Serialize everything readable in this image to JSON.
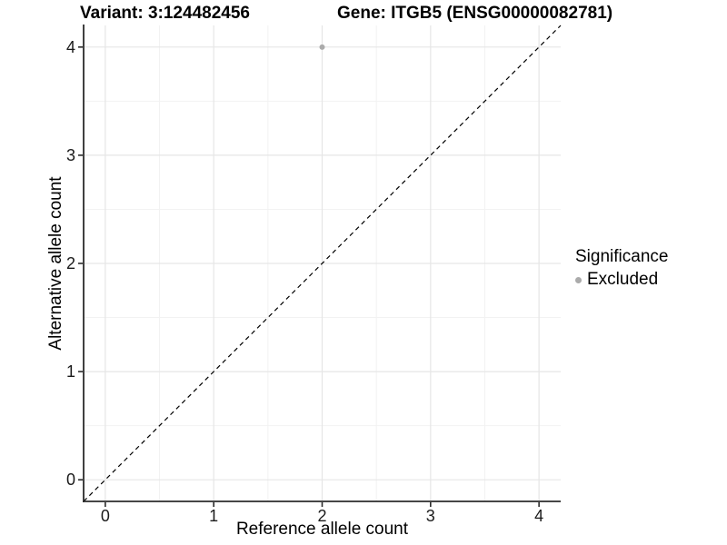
{
  "header": {
    "variant_title": "Variant: 3:124482456",
    "gene_title": "Gene: ITGB5 (ENSG00000082781)"
  },
  "chart_data": {
    "type": "scatter",
    "title": "Variant: 3:124482456 — Gene: ITGB5 (ENSG00000082781)",
    "xlabel": "Reference allele count",
    "ylabel": "Alternative allele count",
    "xlim": [
      -0.2,
      4.2
    ],
    "ylim": [
      -0.2,
      4.2
    ],
    "x_ticks": [
      0,
      1,
      2,
      3,
      4
    ],
    "y_ticks": [
      0,
      1,
      2,
      3,
      4
    ],
    "x_minor_ticks": [
      0.5,
      1.5,
      2.5,
      3.5
    ],
    "y_minor_ticks": [
      0.5,
      1.5,
      2.5,
      3.5
    ],
    "grid": "major+minor",
    "series": [
      {
        "name": "Excluded",
        "marker": "circle",
        "color": "#ababab",
        "points": [
          [
            2,
            4
          ]
        ]
      }
    ],
    "identity_line": {
      "slope": 1,
      "intercept": 0,
      "style": "dashed",
      "color": "#000000"
    },
    "legend": {
      "position": "right",
      "title": "Significance",
      "entries": [
        {
          "label": "Excluded",
          "marker": "circle",
          "color": "#ababab"
        }
      ]
    }
  },
  "colors": {
    "background": "#ffffff",
    "grid_major": "#e6e6e6",
    "grid_minor": "#f2f2f2",
    "axis_line": "#2b2b2b",
    "tick_label": "#1a1a1a",
    "point": "#ababab"
  }
}
